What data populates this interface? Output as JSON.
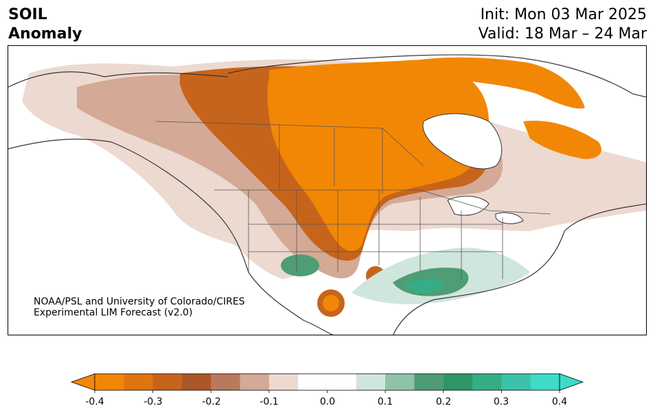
{
  "header": {
    "left_line1": "SOIL",
    "left_line2": "Anomaly",
    "right_line1": "Init: Mon 03 Mar 2025",
    "right_line2": "Valid: 18 Mar – 24 Mar"
  },
  "credit": {
    "line1": "NOAA/PSL and University of Colorado/CIRES",
    "line2": "Experimental LIM Forecast (v2.0)"
  },
  "colorbar": {
    "ticks": [
      "-0.4",
      "-0.3",
      "-0.2",
      "-0.1",
      "0.0",
      "0.1",
      "0.2",
      "0.3",
      "0.4"
    ],
    "colors": [
      "#f28705",
      "#df7510",
      "#c7641c",
      "#ad5628",
      "#b97a5c",
      "#d4a996",
      "#ecd9d0",
      "#ffffff",
      "#ffffff",
      "#cfe6dc",
      "#8fc2a8",
      "#4f9d74",
      "#2e9667",
      "#36ad86",
      "#3cc2a8",
      "#3ddbc8"
    ]
  },
  "map": {
    "region": "North America",
    "colors": {
      "dry_strong": "#f28705",
      "dry_mid": "#c7641c",
      "dry_light": "#d4a996",
      "dry_faint": "#ecd9d0",
      "wet_faint": "#cfe6dc",
      "wet_mid": "#4f9d74",
      "wet_strong": "#36ad86",
      "coast": "#333333"
    }
  }
}
